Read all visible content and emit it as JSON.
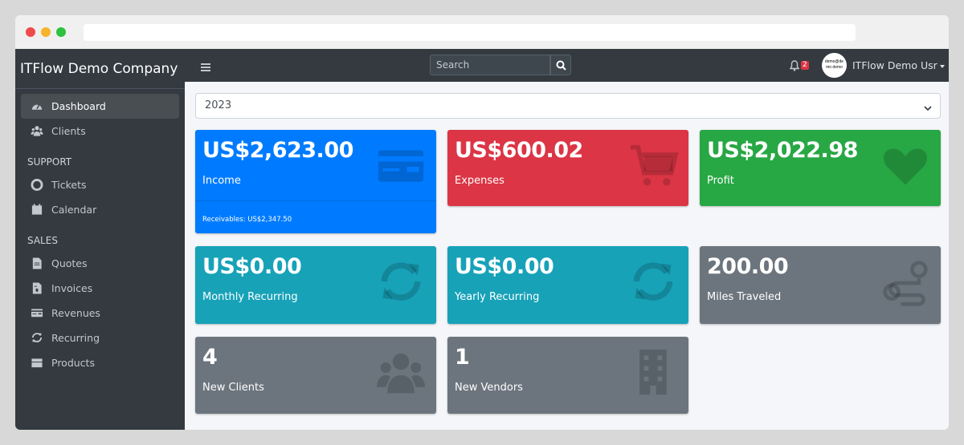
{
  "sidebar": {
    "brand": "ITFlow Demo Company",
    "items": [
      {
        "label": "Dashboard",
        "icon": "tachometer-icon"
      },
      {
        "label": "Clients",
        "icon": "users-icon"
      }
    ],
    "support_header": "SUPPORT",
    "support": [
      {
        "label": "Tickets",
        "icon": "life-ring-icon"
      },
      {
        "label": "Calendar",
        "icon": "calendar-icon"
      }
    ],
    "sales_header": "SALES",
    "sales": [
      {
        "label": "Quotes",
        "icon": "quote-file-icon"
      },
      {
        "label": "Invoices",
        "icon": "invoice-file-icon"
      },
      {
        "label": "Revenues",
        "icon": "credit-card-icon"
      },
      {
        "label": "Recurring",
        "icon": "sync-icon"
      },
      {
        "label": "Products",
        "icon": "box-icon"
      }
    ]
  },
  "topbar": {
    "search_placeholder": "Search",
    "notifications": "2",
    "avatar_text": "demo@demo demo",
    "user": "ITFlow Demo Usr"
  },
  "year_select": "2023",
  "cards": [
    {
      "value": "US$2,623.00",
      "label": "Income",
      "footer": "Receivables: US$2,347.50",
      "color": "#007bff",
      "icon": "credit-card-icon"
    },
    {
      "value": "US$600.02",
      "label": "Expenses",
      "color": "#dc3545",
      "icon": "cart-icon"
    },
    {
      "value": "US$2,022.98",
      "label": "Profit",
      "color": "#28a745",
      "icon": "heart-icon"
    },
    {
      "value": "US$0.00",
      "label": "Monthly Recurring",
      "color": "#17a2b8",
      "icon": "sync-icon"
    },
    {
      "value": "US$0.00",
      "label": "Yearly Recurring",
      "color": "#17a2b8",
      "icon": "sync-icon"
    },
    {
      "value": "200.00",
      "label": "Miles Traveled",
      "color": "#6c757d",
      "icon": "route-icon"
    },
    {
      "value": "4",
      "label": "New Clients",
      "color": "#6c757d",
      "icon": "users-icon"
    },
    {
      "value": "1",
      "label": "New Vendors",
      "color": "#6c757d",
      "icon": "building-icon"
    }
  ]
}
